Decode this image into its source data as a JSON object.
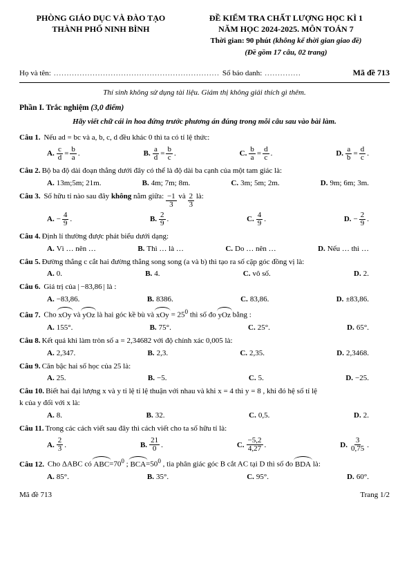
{
  "header": {
    "dept1": "PHÒNG GIÁO DỤC VÀ ĐÀO TẠO",
    "dept2": "THÀNH PHỐ NINH BÌNH",
    "title1": "ĐỀ KIỂM TRA CHẤT LƯỢNG HỌC KÌ 1",
    "title2": "NĂM HỌC 2024-2025. MÔN TOÁN 7",
    "time_bold": "Thời gian: 90 phút",
    "time_italic": " (không kể thời gian giao đề)",
    "pages": "(Đề gồm 17 câu, 02 trang)"
  },
  "studentline": {
    "name_label": "Họ và tên:",
    "sbd_label": "Số báo danh:",
    "made": "Mã đề 713"
  },
  "notice": "Thí sinh không sử dụng tài liệu. Giám thị không giải thích gì thêm.",
  "section1": {
    "label": "Phần I. Trắc nghiệm",
    "points": " (3,0 điểm)"
  },
  "instr": "Hãy viết chữ cái in hoa đứng trước phương án đúng trong mỗi câu sau vào bài làm.",
  "q1": {
    "no": "Câu 1.",
    "text": "Nếu ad = bc và a, b, c, d đều khác 0 thì ta có tỉ lệ thức:",
    "A": {
      "l": "c",
      "r1": "b",
      "r2": "a"
    },
    "B": {
      "l": "a",
      "r1": "b",
      "r2": "c"
    },
    "C": {
      "l": "b",
      "r1": "d",
      "r2": "c"
    },
    "D": {
      "l": "a",
      "r1": "d",
      "r2": "c"
    }
  },
  "q2": {
    "no": "Câu 2.",
    "text": "Bộ ba độ dài đoạn thẳng dưới đây có thể là độ dài ba cạnh của một tam giác là:",
    "A": "13m;5m; 21m.",
    "B": "4m; 7m; 8m.",
    "C": "3m; 5m; 2m.",
    "D": "9m; 6m; 3m."
  },
  "q3": {
    "no": "Câu 3.",
    "pre": "Số hữu tỉ nào sau đây ",
    "kw": "không",
    "post": " nằm giữa: ",
    "f1n": "−1",
    "f1d": "3",
    "and": " và ",
    "f2n": "2",
    "f2d": "3",
    "end": " là:",
    "A": {
      "s": "−",
      "n": "4",
      "d": "9"
    },
    "B": {
      "n": "2",
      "d": "9"
    },
    "C": {
      "n": "4",
      "d": "9"
    },
    "D": {
      "s": "−",
      "n": "2",
      "d": "9"
    }
  },
  "q4": {
    "no": "Câu 4.",
    "text": "Định lí thường được phát biểu dưới dạng:",
    "A": "Vì … nên …",
    "B": "Thì … là …",
    "C": "Do … nên …",
    "D": "Nếu … thì …"
  },
  "q5": {
    "no": "Câu 5.",
    "text": "Đường thẳng c cắt hai đường thẳng song song (a và b) thì tạo ra số cặp góc đồng vị là:",
    "A": "0.",
    "B": "4.",
    "C": "vô số.",
    "D": "2."
  },
  "q6": {
    "no": "Câu 6.",
    "pre": "Giá trị của ",
    "abs": "−83,86",
    "post": " là :",
    "A": "−83,86.",
    "B": "8386.",
    "C": "83,86.",
    "D": "±83,86."
  },
  "q7": {
    "no": "Câu 7.",
    "pre": "Cho ",
    "a1": "xOy",
    "mid": " và ",
    "a2": "yOz",
    "mid2": " là hai góc kề bù và ",
    "a3": "xOy",
    "eq": " = 25",
    "sup": "0",
    "mid3": " thì số đo ",
    "a4": "yOz",
    "end": " bằng :",
    "A": "155°.",
    "B": "75°.",
    "C": "25°.",
    "D": "65°."
  },
  "q8": {
    "no": "Câu 8.",
    "text": "Kết quả khi làm tròn số a = 2,34682 với độ chính xác 0,005 là:",
    "A": "2,347.",
    "B": "2,3.",
    "C": "2,35.",
    "D": "2,3468."
  },
  "q9": {
    "no": "Câu 9.",
    "text": "Căn bậc hai số học của 25 là:",
    "A": "25.",
    "B": "−5.",
    "C": "5.",
    "D": "−25."
  },
  "q10": {
    "no": "Câu 10.",
    "text": "Biết hai đại lượng x và y tỉ lệ tỉ lệ thuận với nhau và khi x = 4 thì y = 8 , khi đó hệ số tỉ lệ",
    "text2": "k của y đối với x là:",
    "A": "8.",
    "B": "32.",
    "C": "0,5.",
    "D": "2."
  },
  "q11": {
    "no": "Câu 11.",
    "text": "Trong các cách viết sau đây thì cách viết cho ta số hữu tỉ là:",
    "A": {
      "n": "2",
      "d": "3"
    },
    "B": {
      "n": "21",
      "d": "0"
    },
    "C": {
      "n": "−5,2",
      "d": "4,27"
    },
    "D": {
      "n": "3",
      "d": "0,75"
    }
  },
  "q12": {
    "no": "Câu 12.",
    "pre": "Cho ΔABC có ",
    "a1": "ABC",
    "v1": "=70",
    "s1": "0",
    "sep": " ; ",
    "a2": "BCA",
    "v2": "=50",
    "s2": "0",
    "mid": " , tia phân giác góc B cắt AC tại D thì số đo ",
    "a3": "BDA",
    "end": " là:",
    "A": "85°.",
    "B": "35°.",
    "C": "95°.",
    "D": "60°."
  },
  "footer": {
    "left": "Mã đề 713",
    "right": "Trang 1/2"
  }
}
